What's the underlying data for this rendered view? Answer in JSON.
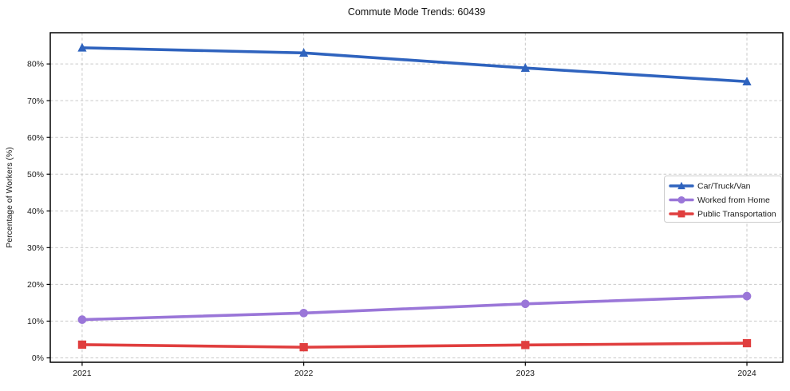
{
  "chart_data": {
    "type": "line",
    "title": "Commute Mode Trends: 60439",
    "xlabel": "",
    "ylabel": "Percentage of Workers (%)",
    "categories": [
      "2021",
      "2022",
      "2023",
      "2024"
    ],
    "series": [
      {
        "name": "Car/Truck/Van",
        "color": "#2f63be",
        "marker": "triangle-icon",
        "values": [
          84.4,
          83.0,
          78.9,
          75.2
        ]
      },
      {
        "name": "Worked from Home",
        "color": "#9a76d8",
        "marker": "circle-icon",
        "values": [
          10.4,
          12.2,
          14.7,
          16.8
        ]
      },
      {
        "name": "Public Transportation",
        "color": "#e03e3e",
        "marker": "square-icon",
        "values": [
          3.6,
          2.9,
          3.5,
          4.0
        ]
      }
    ],
    "ylim": [
      -1.2,
      88.5
    ],
    "yticks": [
      0,
      10,
      20,
      30,
      40,
      50,
      60,
      70,
      80
    ],
    "ytick_suffix": "%",
    "grid": true,
    "grid_style": "dashed",
    "grid_color": "#c9c9c9",
    "axis_color": "#000000",
    "text_color": "#1a1a1a",
    "legend_position": "center-right",
    "legend_border_color": "#cccccc"
  }
}
